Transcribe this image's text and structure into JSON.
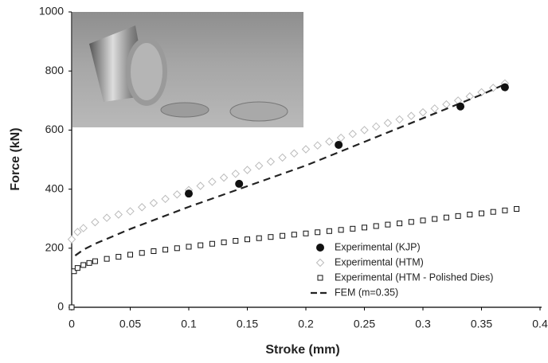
{
  "chart_data": {
    "type": "scatter",
    "xlabel": "Stroke (mm)",
    "ylabel": "Force (kN)",
    "xlim": [
      0,
      0.4
    ],
    "xticks": [
      0,
      0.05,
      0.1,
      0.15,
      0.2,
      0.25,
      0.3,
      0.35,
      0.4
    ],
    "ylim": [
      0,
      1000
    ],
    "yticks": [
      0,
      200,
      400,
      600,
      800,
      1000
    ],
    "grid": false,
    "legend": "lower right",
    "series": [
      {
        "name": "Experimental (KJP)",
        "color": "#111111",
        "marker": "circle",
        "x": [
          0.1,
          0.143,
          0.228,
          0.332,
          0.37
        ],
        "values": [
          385,
          418,
          550,
          680,
          745
        ]
      },
      {
        "name": "Experimental (HTM)",
        "color": "#bbbbbb",
        "marker": "diamond",
        "x": [
          0,
          0.005,
          0.01,
          0.02,
          0.03,
          0.04,
          0.05,
          0.06,
          0.07,
          0.08,
          0.09,
          0.1,
          0.11,
          0.12,
          0.13,
          0.14,
          0.15,
          0.16,
          0.17,
          0.18,
          0.19,
          0.2,
          0.21,
          0.22,
          0.23,
          0.24,
          0.25,
          0.26,
          0.27,
          0.28,
          0.29,
          0.3,
          0.31,
          0.32,
          0.33,
          0.34,
          0.35,
          0.36,
          0.37
        ],
        "values": [
          230,
          255,
          268,
          288,
          303,
          314,
          325,
          339,
          353,
          367,
          382,
          397,
          411,
          425,
          439,
          452,
          465,
          479,
          493,
          507,
          521,
          535,
          548,
          561,
          574,
          587,
          600,
          612,
          624,
          636,
          648,
          660,
          673,
          687,
          700,
          714,
          728,
          743,
          758
        ]
      },
      {
        "name": "Experimental (HTM - Polished Dies)",
        "color": "#111111",
        "marker": "square",
        "x": [
          0,
          0.002,
          0.005,
          0.01,
          0.015,
          0.02,
          0.03,
          0.04,
          0.05,
          0.06,
          0.07,
          0.08,
          0.09,
          0.1,
          0.11,
          0.12,
          0.13,
          0.14,
          0.15,
          0.16,
          0.17,
          0.18,
          0.19,
          0.2,
          0.21,
          0.22,
          0.23,
          0.24,
          0.25,
          0.26,
          0.27,
          0.28,
          0.29,
          0.3,
          0.31,
          0.32,
          0.33,
          0.34,
          0.35,
          0.36,
          0.37,
          0.38
        ],
        "values": [
          0,
          122,
          133,
          143,
          150,
          156,
          164,
          171,
          178,
          184,
          190,
          195,
          200,
          205,
          210,
          215,
          220,
          225,
          230,
          234,
          238,
          242,
          246,
          250,
          254,
          258,
          262,
          266,
          270,
          275,
          280,
          284,
          289,
          294,
          299,
          304,
          309,
          314,
          318,
          323,
          328,
          333
        ]
      },
      {
        "name": "FEM (m=0.35)",
        "color": "#222222",
        "marker": "dashed-line",
        "x": [
          0.003,
          0.01,
          0.02,
          0.05,
          0.1,
          0.15,
          0.2,
          0.25,
          0.3,
          0.35,
          0.37
        ],
        "values": [
          175,
          195,
          215,
          265,
          340,
          410,
          480,
          560,
          640,
          720,
          755
        ]
      }
    ]
  }
}
